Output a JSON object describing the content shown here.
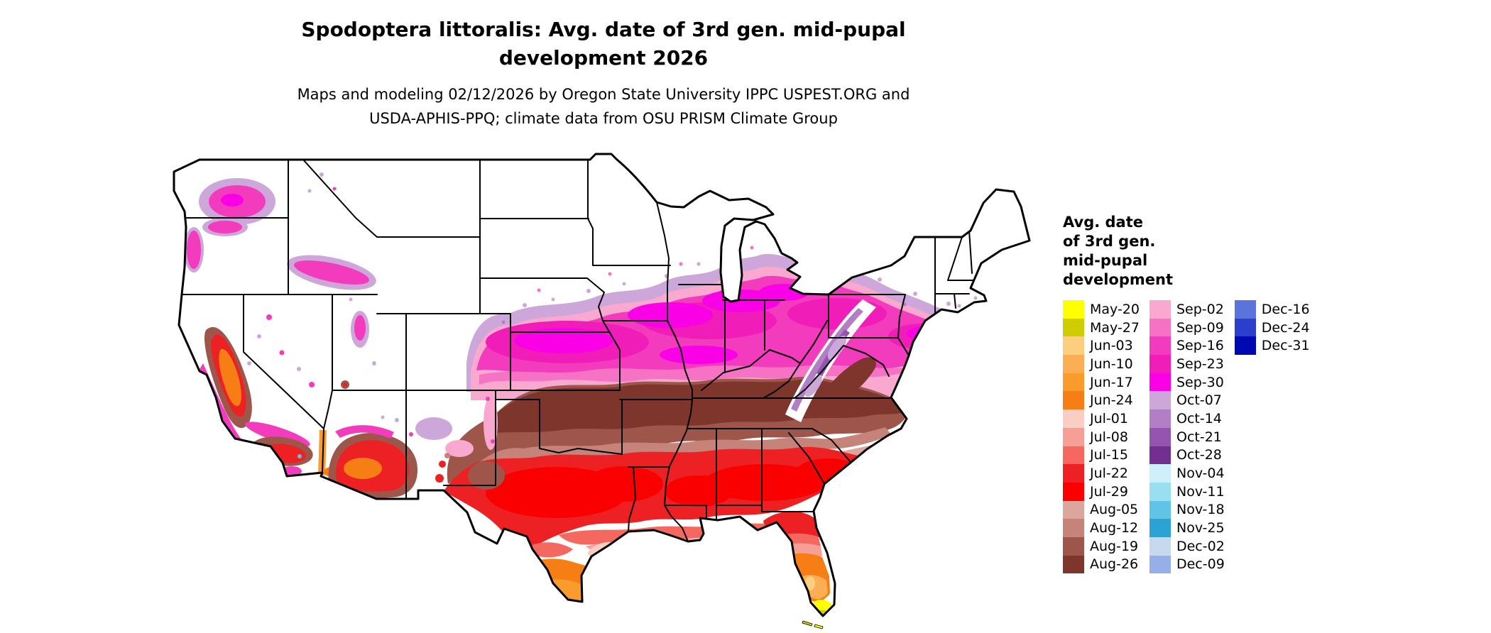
{
  "header": {
    "title_line1": "Spodoptera littoralis: Avg. date of 3rd gen. mid-pupal",
    "title_line2": "development 2026",
    "subtitle_line1": "Maps and modeling 02/12/2026 by Oregon State University IPPC USPEST.ORG and",
    "subtitle_line2": "USDA-APHIS-PPQ; climate data from OSU PRISM Climate Group"
  },
  "map": {
    "region": "Continental United States",
    "no_data_color": "#FFFFFF",
    "border_color": "#000000"
  },
  "legend": {
    "title_lines": [
      "Avg. date",
      "of 3rd gen.",
      "mid-pupal",
      "development"
    ],
    "columns": [
      [
        {
          "label": "May-20",
          "color": "#FFFF00"
        },
        {
          "label": "May-27",
          "color": "#CDCD00"
        },
        {
          "label": "Jun-03",
          "color": "#FBCF7D"
        },
        {
          "label": "Jun-10",
          "color": "#FBAE54"
        },
        {
          "label": "Jun-17",
          "color": "#F99B2D"
        },
        {
          "label": "Jun-24",
          "color": "#F67E14"
        },
        {
          "label": "Jul-01",
          "color": "#FBCEC4"
        },
        {
          "label": "Jul-08",
          "color": "#F79F97"
        },
        {
          "label": "Jul-15",
          "color": "#F4685F"
        },
        {
          "label": "Jul-22",
          "color": "#ED2024"
        },
        {
          "label": "Jul-29",
          "color": "#FA0000"
        },
        {
          "label": "Aug-05",
          "color": "#DCA69E"
        },
        {
          "label": "Aug-12",
          "color": "#C5837A"
        },
        {
          "label": "Aug-19",
          "color": "#9F564A"
        },
        {
          "label": "Aug-26",
          "color": "#7E352C"
        }
      ],
      [
        {
          "label": "Sep-02",
          "color": "#F9A8CF"
        },
        {
          "label": "Sep-09",
          "color": "#F672C5"
        },
        {
          "label": "Sep-16",
          "color": "#F23CBD"
        },
        {
          "label": "Sep-23",
          "color": "#F01DB8"
        },
        {
          "label": "Sep-30",
          "color": "#FA00E6"
        },
        {
          "label": "Oct-07",
          "color": "#CDA7D9"
        },
        {
          "label": "Oct-14",
          "color": "#B27FC6"
        },
        {
          "label": "Oct-21",
          "color": "#9355AE"
        },
        {
          "label": "Oct-28",
          "color": "#722F90"
        },
        {
          "label": "Nov-04",
          "color": "#CFF0FB"
        },
        {
          "label": "Nov-11",
          "color": "#9ADEF2"
        },
        {
          "label": "Nov-18",
          "color": "#5FC4E6"
        },
        {
          "label": "Nov-25",
          "color": "#2DA3D4"
        },
        {
          "label": "Dec-02",
          "color": "#C6D9EF"
        },
        {
          "label": "Dec-09",
          "color": "#95AFE9"
        }
      ],
      [
        {
          "label": "Dec-16",
          "color": "#5B74DB"
        },
        {
          "label": "Dec-24",
          "color": "#2A3FCC"
        },
        {
          "label": "Dec-31",
          "color": "#0008B3"
        }
      ]
    ]
  }
}
